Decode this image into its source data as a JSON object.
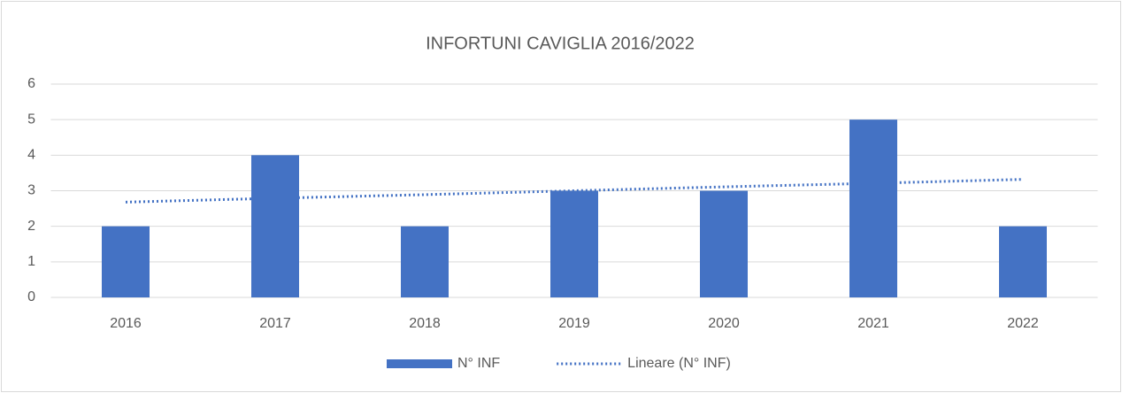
{
  "chart_data": {
    "type": "bar",
    "title": "INFORTUNI CAVIGLIA 2016/2022",
    "categories": [
      "2016",
      "2017",
      "2018",
      "2019",
      "2020",
      "2021",
      "2022"
    ],
    "series": [
      {
        "name": "N° INF",
        "type": "bar",
        "color": "#4472c4",
        "values": [
          2,
          4,
          2,
          3,
          3,
          5,
          2
        ]
      },
      {
        "name": "Lineare (N° INF)",
        "type": "line",
        "dotted": true,
        "color": "#4472c4",
        "values": [
          2.68,
          2.79,
          2.89,
          3,
          3.11,
          3.21,
          3.32
        ]
      }
    ],
    "ylim": [
      0,
      6
    ],
    "yticks": [
      0,
      1,
      2,
      3,
      4,
      5,
      6
    ],
    "grid": true,
    "legend": "bottom"
  }
}
